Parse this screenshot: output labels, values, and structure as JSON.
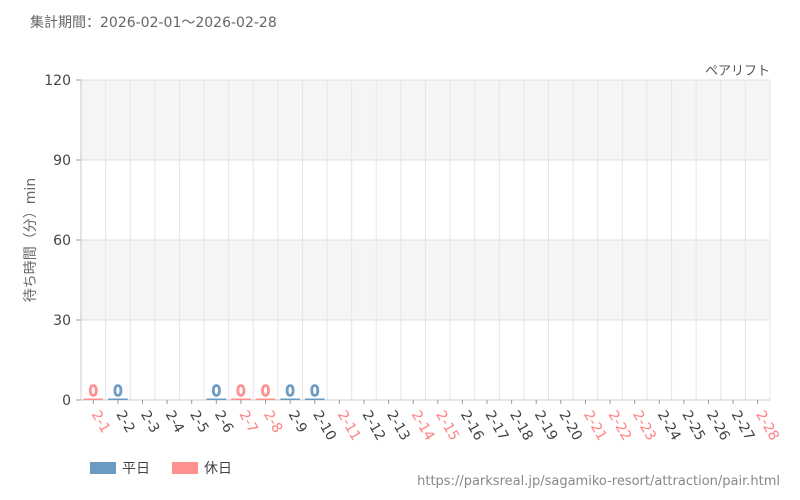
{
  "header": {
    "period": "集計期間：2026-02-01～2026-02-28",
    "attraction": "ペアリフト"
  },
  "legend": [
    {
      "label": "平日",
      "color": "#6b9bc3"
    },
    {
      "label": "休日",
      "color": "#ff9090"
    }
  ],
  "source_url": "https://parksreal.jp/sagamiko-resort/attraction/pair.html",
  "chart_data": {
    "type": "bar",
    "ylabel": "待ち時間（分）min",
    "ylim": [
      0,
      120
    ],
    "yticks": [
      0,
      30,
      60,
      90,
      120
    ],
    "grid": true,
    "categories": [
      "2-1",
      "2-2",
      "2-3",
      "2-4",
      "2-5",
      "2-6",
      "2-7",
      "2-8",
      "2-9",
      "2-10",
      "2-11",
      "2-12",
      "2-13",
      "2-14",
      "2-15",
      "2-16",
      "2-17",
      "2-18",
      "2-19",
      "2-20",
      "2-21",
      "2-22",
      "2-23",
      "2-24",
      "2-25",
      "2-26",
      "2-27",
      "2-28"
    ],
    "day_type": [
      "holiday",
      "weekday",
      "weekday",
      "weekday",
      "weekday",
      "weekday",
      "holiday",
      "holiday",
      "weekday",
      "weekday",
      "holiday",
      "weekday",
      "weekday",
      "holiday",
      "holiday",
      "weekday",
      "weekday",
      "weekday",
      "weekday",
      "weekday",
      "holiday",
      "holiday",
      "holiday",
      "weekday",
      "weekday",
      "weekday",
      "weekday",
      "holiday"
    ],
    "values": [
      0,
      0,
      null,
      null,
      null,
      0,
      0,
      0,
      0,
      0,
      null,
      null,
      null,
      null,
      null,
      null,
      null,
      null,
      null,
      null,
      null,
      null,
      null,
      null,
      null,
      null,
      null,
      null
    ],
    "colors": {
      "weekday": "#6b9bc3",
      "holiday": "#ff9090",
      "axis_label": "#444444",
      "holiday_label": "#ff8080"
    }
  }
}
